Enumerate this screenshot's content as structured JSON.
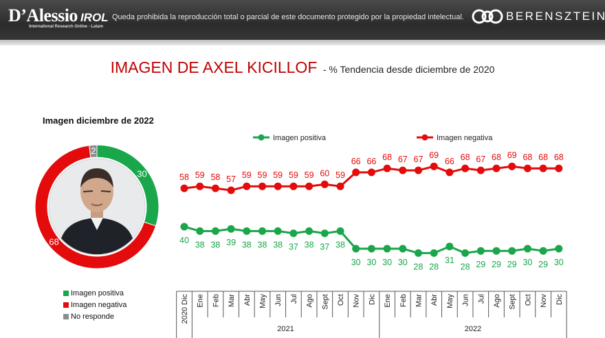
{
  "header": {
    "logo_left_main": "D’Alessio",
    "logo_left_irol": "IROL",
    "logo_left_sub": "International Research Online - Latam",
    "disclaimer": "Queda prohibida la reproducción total o parcial de este documento protegido por la propiedad intelectual.",
    "logo_right": "BERENSZTEIN"
  },
  "title": {
    "main": "IMAGEN DE AXEL KICILLOF",
    "sub": "- % Tendencia desde diciembre de 2020"
  },
  "colors": {
    "positive": "#1aa64a",
    "negative": "#e30b0b",
    "no_response": "#8c8c8c"
  },
  "chart_data": [
    {
      "type": "pie",
      "title": "Imagen diciembre de 2022",
      "labels": [
        "Imagen positiva",
        "Imagen negativa",
        "No responde"
      ],
      "values": [
        30,
        68,
        2
      ],
      "legend_position": "bottom-left"
    },
    {
      "type": "line",
      "categories": [
        "Dic",
        "Ene",
        "Feb",
        "Mar",
        "Abr",
        "May",
        "Jun",
        "Jul",
        "Ago",
        "Sept",
        "Oct",
        "Nov",
        "Dic",
        "Ene",
        "Feb",
        "Mar",
        "Abr",
        "May",
        "Jun",
        "Jul",
        "Ago",
        "Sept",
        "Oct",
        "Nov",
        "Dic"
      ],
      "first_category_prefix": "2020",
      "year_groups": [
        {
          "label": "2021",
          "start": 1,
          "end": 12
        },
        {
          "label": "2022",
          "start": 13,
          "end": 24
        }
      ],
      "series": [
        {
          "name": "Imagen positiva",
          "values": [
            40,
            38,
            38,
            39,
            38,
            38,
            38,
            37,
            38,
            37,
            38,
            30,
            30,
            30,
            30,
            28,
            28,
            31,
            28,
            29,
            29,
            29,
            30,
            29,
            30
          ]
        },
        {
          "name": "Imagen negativa",
          "values": [
            58,
            59,
            58,
            57,
            59,
            59,
            59,
            59,
            59,
            60,
            59,
            66,
            66,
            68,
            67,
            67,
            69,
            66,
            68,
            67,
            68,
            69,
            68,
            68,
            68
          ]
        }
      ],
      "legend_position": "top",
      "grid": false
    }
  ]
}
